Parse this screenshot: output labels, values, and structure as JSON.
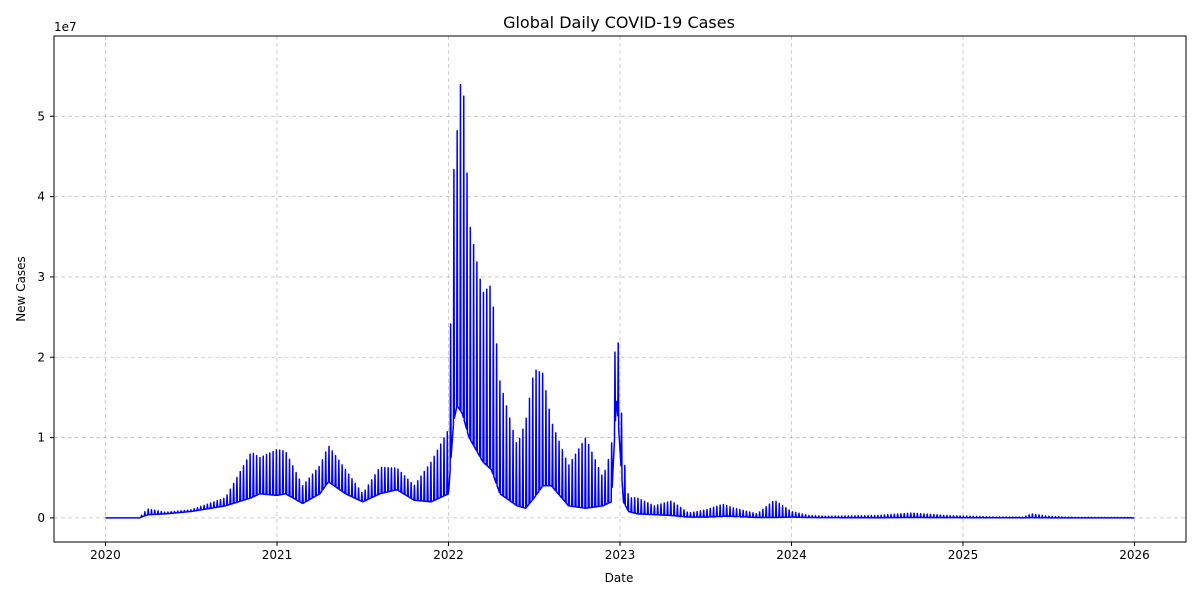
{
  "chart_data": {
    "type": "line",
    "title": "Global Daily COVID-19 Cases",
    "xlabel": "Date",
    "ylabel": "New Cases",
    "y_exponent_label": "1e7",
    "y_scale": 10000000,
    "xlim": [
      2019.7,
      2026.3
    ],
    "ylim": [
      -3000000,
      60000000
    ],
    "x_ticks": [
      2020,
      2021,
      2022,
      2023,
      2024,
      2025,
      2026
    ],
    "x_tick_labels": [
      "2020",
      "2021",
      "2022",
      "2023",
      "2024",
      "2025",
      "2026"
    ],
    "y_ticks": [
      0,
      10000000,
      20000000,
      30000000,
      40000000,
      50000000
    ],
    "y_tick_labels": [
      "0",
      "1",
      "2",
      "3",
      "4",
      "5"
    ],
    "grid": true,
    "line_color": "#0000ff",
    "series": [
      {
        "name": "New Cases",
        "envelope": {
          "x": [
            2020.0,
            2020.2,
            2020.22,
            2020.25,
            2020.35,
            2020.5,
            2020.7,
            2020.85,
            2020.9,
            2021.0,
            2021.05,
            2021.15,
            2021.25,
            2021.3,
            2021.4,
            2021.5,
            2021.6,
            2021.7,
            2021.8,
            2021.9,
            2022.0,
            2022.03,
            2022.05,
            2022.08,
            2022.12,
            2022.2,
            2022.25,
            2022.3,
            2022.4,
            2022.45,
            2022.5,
            2022.55,
            2022.6,
            2022.7,
            2022.8,
            2022.9,
            2022.95,
            2022.98,
            2023.02,
            2023.05,
            2023.1,
            2023.2,
            2023.3,
            2023.4,
            2023.5,
            2023.6,
            2023.65,
            2023.8,
            2023.9,
            2024.0,
            2024.1,
            2024.2,
            2024.5,
            2024.7,
            2024.9,
            2025.2,
            2025.35,
            2025.4,
            2025.5,
            2025.6,
            2026.0
          ],
          "high": [
            0,
            0,
            600000,
            1100000,
            700000,
            1000000,
            2500000,
            8200000,
            7500000,
            8500000,
            8300000,
            4000000,
            6500000,
            9000000,
            6000000,
            3000000,
            6300000,
            6200000,
            4000000,
            7000000,
            11000000,
            43000000,
            48000000,
            57000000,
            37000000,
            28000000,
            29000000,
            17000000,
            9000000,
            12000000,
            18500000,
            18000000,
            12000000,
            6500000,
            10000000,
            5000000,
            8500000,
            26200000,
            8000000,
            2500000,
            2500000,
            1500000,
            2100000,
            600000,
            1000000,
            1700000,
            1300000,
            500000,
            2200000,
            800000,
            300000,
            200000,
            300000,
            600000,
            300000,
            100000,
            100000,
            500000,
            200000,
            80000,
            50000
          ],
          "low": [
            0,
            0,
            200000,
            400000,
            500000,
            800000,
            1500000,
            2500000,
            3000000,
            2800000,
            3000000,
            1800000,
            3000000,
            4500000,
            3000000,
            2000000,
            3000000,
            3500000,
            2200000,
            2000000,
            3000000,
            12000000,
            14000000,
            13000000,
            10000000,
            7000000,
            6000000,
            3000000,
            1500000,
            1200000,
            2500000,
            4000000,
            4000000,
            1500000,
            1200000,
            1500000,
            2000000,
            15000000,
            2000000,
            800000,
            500000,
            400000,
            300000,
            100000,
            100000,
            200000,
            200000,
            50000,
            50000,
            100000,
            50000,
            30000,
            20000,
            50000,
            30000,
            20000,
            10000,
            30000,
            10000,
            5000,
            0
          ]
        }
      }
    ]
  }
}
